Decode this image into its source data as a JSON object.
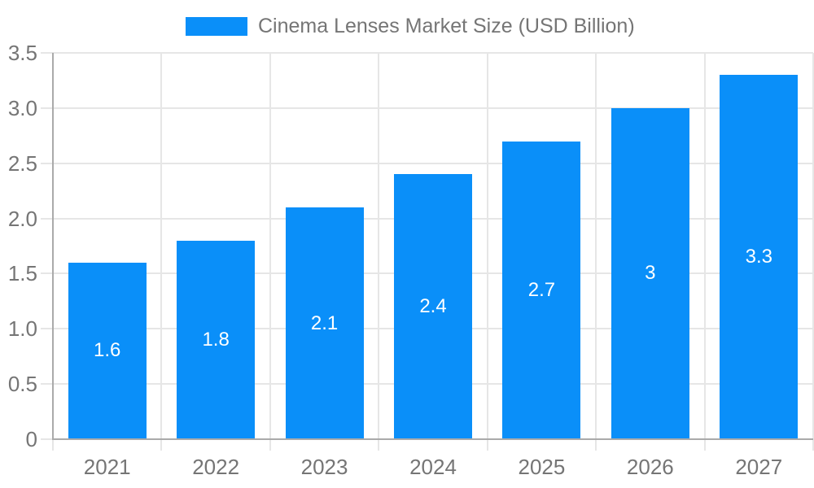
{
  "chart_data": {
    "type": "bar",
    "title": "Cinema Lenses Market Size (USD Billion)",
    "categories": [
      "2021",
      "2022",
      "2023",
      "2024",
      "2025",
      "2026",
      "2027"
    ],
    "values": [
      1.6,
      1.8,
      2.1,
      2.4,
      2.7,
      3,
      3.3
    ],
    "value_labels": [
      "1.6",
      "1.8",
      "2.1",
      "2.4",
      "2.7",
      "3",
      "3.3"
    ],
    "xlabel": "",
    "ylabel": "",
    "ylim": [
      0,
      3.5
    ],
    "y_ticks": [
      0,
      0.5,
      1,
      1.5,
      2,
      2.5,
      3,
      3.5
    ],
    "y_tick_labels": [
      "0",
      "0.5",
      "1.0",
      "1.5",
      "2.0",
      "2.5",
      "3.0",
      "3.5"
    ],
    "grid": true,
    "legend_position": "top"
  },
  "colors": {
    "bar": "#0a8ff9",
    "grid": "#e6e6e6",
    "axis": "#aaaaaa",
    "text": "#757575",
    "value_label": "#ffffff",
    "background": "#ffffff"
  }
}
